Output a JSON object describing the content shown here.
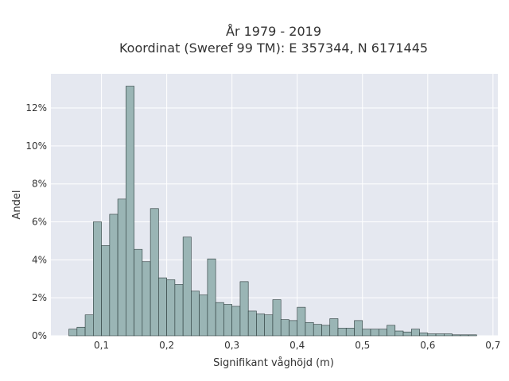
{
  "chart_data": {
    "type": "bar",
    "title": "År 1979 - 2019",
    "subtitle": "Koordinat (Sweref 99 TM): E 357344, N 6171445",
    "xlabel": "Signifikant våghöjd (m)",
    "ylabel": "Andel",
    "xlim": [
      0.0225,
      0.7075
    ],
    "ylim": [
      0,
      13.8
    ],
    "x_ticks": [
      0.1,
      0.2,
      0.3,
      0.4,
      0.5,
      0.6,
      0.7
    ],
    "x_tick_labels": [
      "0,1",
      "0,2",
      "0,3",
      "0,4",
      "0,5",
      "0,6",
      "0,7"
    ],
    "y_ticks": [
      0,
      2,
      4,
      6,
      8,
      10,
      12
    ],
    "y_tick_labels": [
      "0%",
      "2%",
      "4%",
      "6%",
      "8%",
      "10%",
      "12%"
    ],
    "bin_width": 0.0125,
    "bin_start": 0.05,
    "values": [
      0.35,
      0.45,
      1.1,
      6.0,
      4.75,
      6.4,
      7.2,
      13.15,
      4.55,
      3.9,
      6.7,
      3.05,
      2.95,
      2.7,
      5.2,
      2.35,
      2.15,
      4.05,
      1.75,
      1.65,
      1.55,
      2.85,
      1.3,
      1.15,
      1.1,
      1.9,
      0.85,
      0.8,
      1.5,
      0.7,
      0.6,
      0.55,
      0.9,
      0.4,
      0.4,
      0.8,
      0.35,
      0.35,
      0.35,
      0.55,
      0.25,
      0.2,
      0.35,
      0.15,
      0.1,
      0.1,
      0.1,
      0.05,
      0.05,
      0.05,
      0.0
    ],
    "bar_color": "#9ab5b5",
    "bar_edge_color": "#2a3a3a",
    "plot_background": "#e5e8f0",
    "grid": true,
    "legend": false
  }
}
